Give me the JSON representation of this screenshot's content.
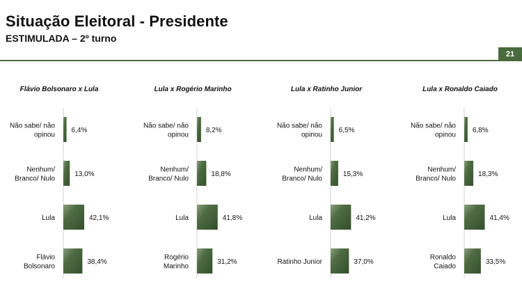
{
  "header": {
    "title": "Situação Eleitoral - Presidente",
    "subtitle": "ESTIMULADA – 2º turno",
    "page_number": "21",
    "accent_color": "#4a6b3d"
  },
  "chart_data": [
    {
      "type": "bar",
      "orientation": "horizontal",
      "title": "Flávio Bolsonaro x Lula",
      "categories": [
        [
          "Não sabe/ não",
          "opinou"
        ],
        [
          "Nenhum/",
          "Branco/ Nulo"
        ],
        [
          "Lula"
        ],
        [
          "Flávio",
          "Bolsonaro"
        ]
      ],
      "values": [
        6.4,
        13.0,
        42.1,
        38.4
      ],
      "value_labels": [
        "6,4%",
        "13,0%",
        "42,1%",
        "38,4%"
      ],
      "xlim": [
        0,
        100
      ]
    },
    {
      "type": "bar",
      "orientation": "horizontal",
      "title": "Lula x Rogério Marinho",
      "categories": [
        [
          "Não sabe/ não",
          "opinou"
        ],
        [
          "Nenhum/",
          "Branco/ Nulo"
        ],
        [
          "Lula"
        ],
        [
          "Rogério",
          "Marinho"
        ]
      ],
      "values": [
        8.2,
        18.8,
        41.8,
        31.2
      ],
      "value_labels": [
        "8,2%",
        "18,8%",
        "41,8%",
        "31,2%"
      ],
      "xlim": [
        0,
        100
      ]
    },
    {
      "type": "bar",
      "orientation": "horizontal",
      "title": "Lula x Ratinho Junior",
      "categories": [
        [
          "Não sabe/ não",
          "opinou"
        ],
        [
          "Nenhum/",
          "Branco/ Nulo"
        ],
        [
          "Lula"
        ],
        [
          "Ratinho Junior"
        ]
      ],
      "values": [
        6.5,
        15.3,
        41.2,
        37.0
      ],
      "value_labels": [
        "6,5%",
        "15,3%",
        "41,2%",
        "37,0%"
      ],
      "xlim": [
        0,
        100
      ]
    },
    {
      "type": "bar",
      "orientation": "horizontal",
      "title": "Lula x Ronaldo Caiado",
      "categories": [
        [
          "Não sabe/ não",
          "opinou"
        ],
        [
          "Nenhum/",
          "Branco/ Nulo"
        ],
        [
          "Lula"
        ],
        [
          "Ronaldo",
          "Caiado"
        ]
      ],
      "values": [
        6.8,
        18.3,
        41.4,
        33.5
      ],
      "value_labels": [
        "6,8%",
        "18,3%",
        "41,4%",
        "33,5%"
      ],
      "xlim": [
        0,
        100
      ]
    }
  ]
}
